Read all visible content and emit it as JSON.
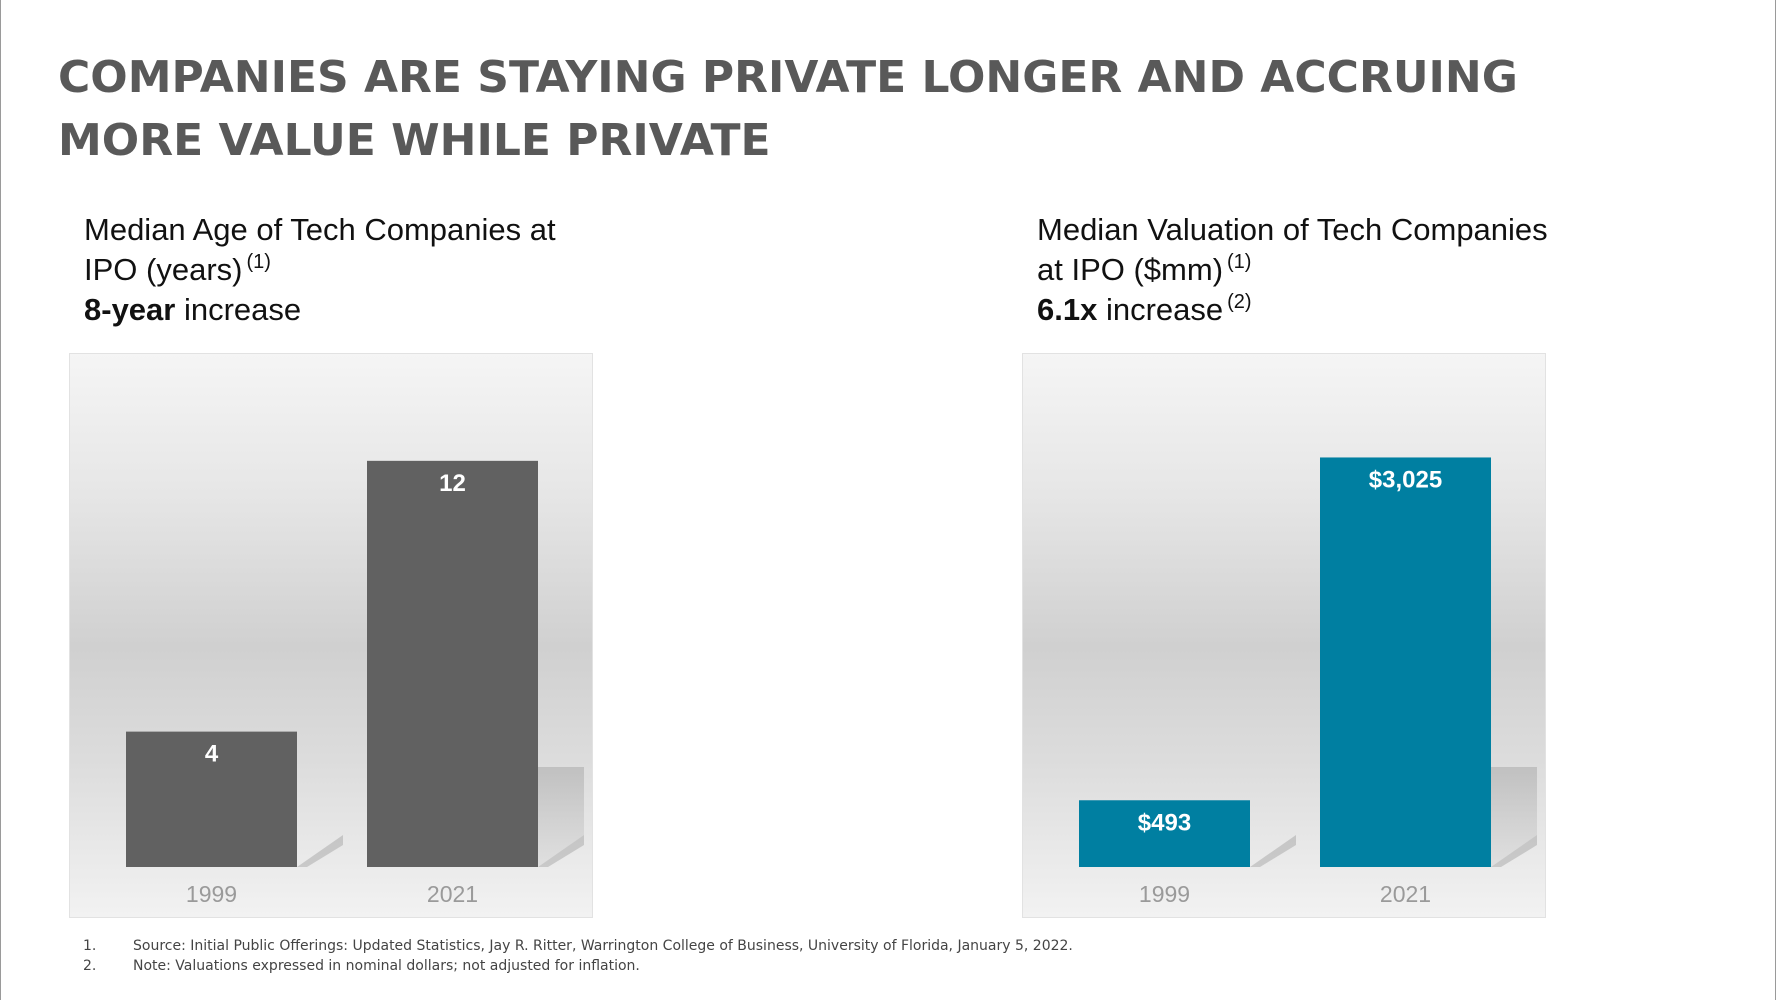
{
  "headline": {
    "line1": "COMPANIES ARE STAYING PRIVATE LONGER AND ACCRUING",
    "line2": "MORE VALUE WHILE PRIVATE"
  },
  "charts": {
    "left": {
      "title_line1": "Median Age of Tech Companies at",
      "title_line2": "IPO (years)",
      "title_line2_note": "(1)",
      "highlight": "8-year",
      "highlight_suffix": " increase",
      "highlight_note": ""
    },
    "right": {
      "title_line1": "Median Valuation of Tech Companies",
      "title_line2": "at IPO ($mm)",
      "title_line2_note": "(1)",
      "highlight": "6.1x",
      "highlight_suffix": " increase",
      "highlight_note": "(2)"
    }
  },
  "chart_data": [
    {
      "type": "bar",
      "title": "Median Age of Tech Companies at IPO (years)",
      "categories": [
        "1999",
        "2021"
      ],
      "values": [
        4,
        12
      ],
      "value_labels": [
        "4",
        "12"
      ],
      "bar_color": "#616161",
      "ylim": [
        0,
        13
      ],
      "grid": false
    },
    {
      "type": "bar",
      "title": "Median Valuation of Tech Companies at IPO ($mm)",
      "categories": [
        "1999",
        "2021"
      ],
      "values": [
        493,
        3025
      ],
      "value_labels": [
        "$493",
        "$3,025"
      ],
      "bar_color": "#007fa1",
      "ylim": [
        0,
        3250
      ],
      "grid": false
    }
  ],
  "footnotes": [
    {
      "num": "1.",
      "text": "Source: Initial Public Offerings: Updated Statistics, Jay R. Ritter, Warrington College of Business, University of Florida, January 5, 2022."
    },
    {
      "num": "2.",
      "text": "Note: Valuations expressed in nominal dollars; not adjusted for inflation."
    }
  ]
}
